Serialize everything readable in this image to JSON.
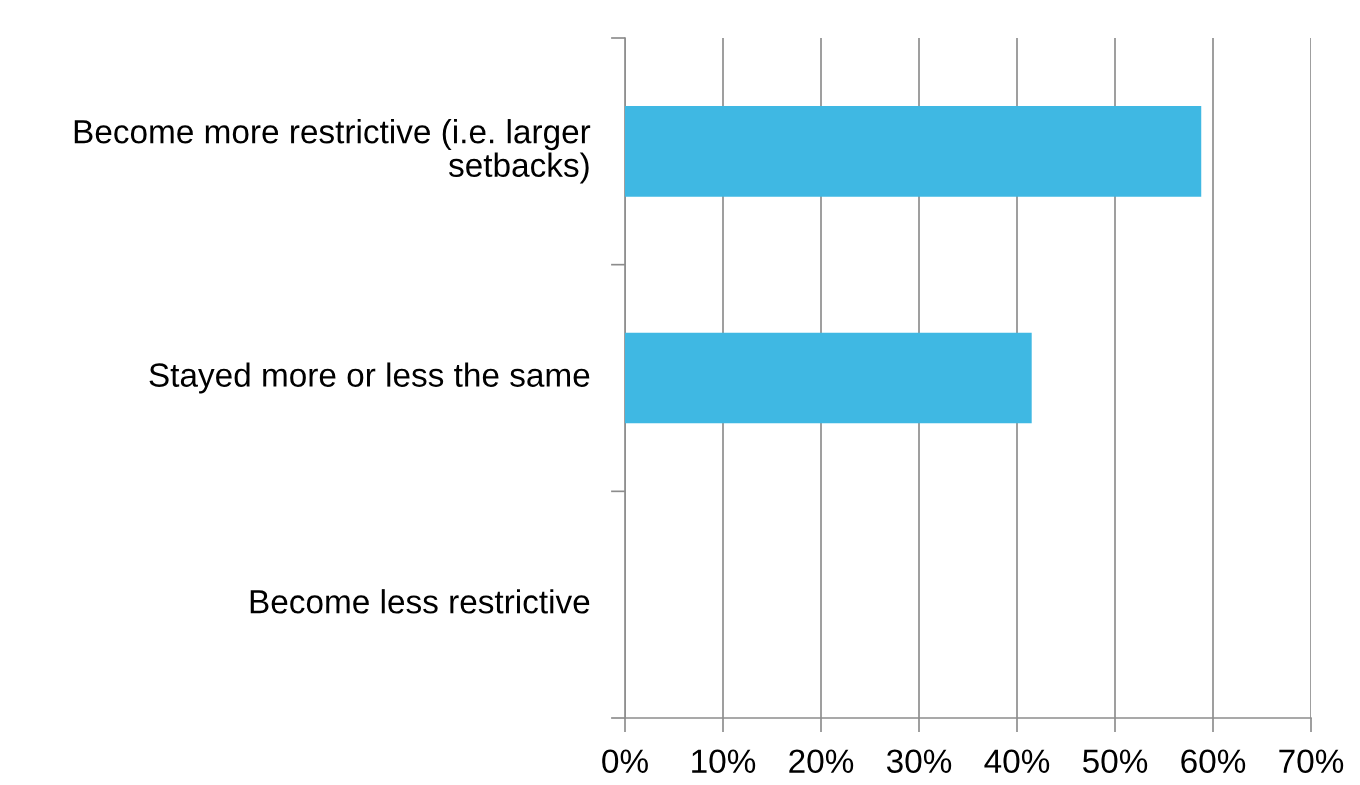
{
  "chart_data": {
    "type": "bar",
    "orientation": "horizontal",
    "categories": [
      "Become more restrictive (i.e. larger setbacks)",
      "Stayed more or less the same",
      "Become less restrictive"
    ],
    "values": [
      58.8,
      41.5,
      0
    ],
    "color": "#3fb8e3",
    "xlim": [
      0,
      70
    ],
    "xticks": [
      {
        "value": 0,
        "label": "0%"
      },
      {
        "value": 10,
        "label": "10%"
      },
      {
        "value": 20,
        "label": "20%"
      },
      {
        "value": 30,
        "label": "30%"
      },
      {
        "value": 40,
        "label": "40%"
      },
      {
        "value": 50,
        "label": "50%"
      },
      {
        "value": 60,
        "label": "60%"
      },
      {
        "value": 70,
        "label": "70%"
      }
    ],
    "grid": "x",
    "legend": false
  }
}
